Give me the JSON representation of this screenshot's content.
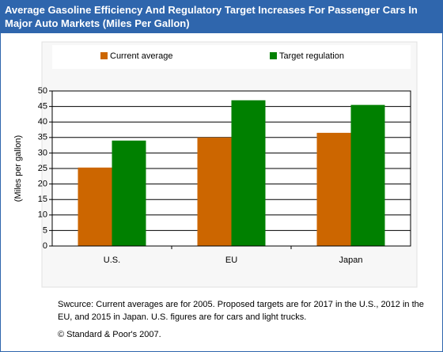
{
  "chart_data": {
    "type": "bar",
    "title": "Average Gasoline Efficiency And Regulatory Target Increases For Passenger Cars In Major Auto Markets (Miles Per Gallon)",
    "y_label": "(Miles per gallon)",
    "categories": [
      "U.S.",
      "EU",
      "Japan"
    ],
    "series": [
      {
        "name": "Current average",
        "color": "#cc6600",
        "values": [
          25.3,
          35,
          36.5
        ]
      },
      {
        "name": "Target regulation",
        "color": "#008000",
        "values": [
          34,
          47,
          45.5
        ]
      }
    ],
    "ylim": [
      0,
      50
    ],
    "yticks": [
      0,
      5,
      10,
      15,
      20,
      25,
      30,
      35,
      40,
      45,
      50
    ],
    "grid": true,
    "legend": "top",
    "note": "Swcurce: Current averages are for 2005. Proposed targets are for 2017 in the U.S., 2012 in the EU, and 2015 in Japan. U.S. figures are for cars and light trucks.",
    "copyright": "© Standard & Poor's 2007."
  }
}
